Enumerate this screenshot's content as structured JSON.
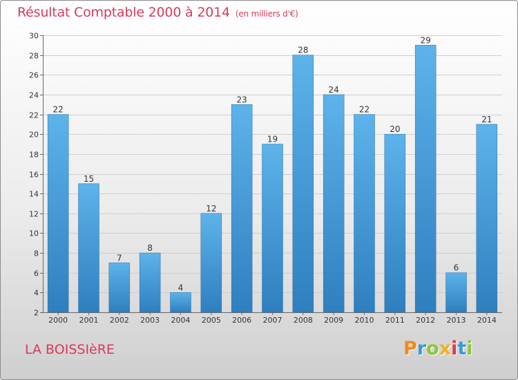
{
  "chart_data": {
    "type": "bar",
    "title": "Résultat Comptable 2000 à 2014",
    "subtitle": "(en milliers d'€)",
    "categories": [
      "2000",
      "2001",
      "2002",
      "2003",
      "2004",
      "2005",
      "2006",
      "2007",
      "2008",
      "2009",
      "2010",
      "2011",
      "2012",
      "2013",
      "2014"
    ],
    "values": [
      22,
      15,
      7,
      8,
      4,
      12,
      23,
      19,
      28,
      24,
      22,
      20,
      29,
      6,
      21
    ],
    "ylim": [
      2,
      30
    ],
    "yticks": [
      2,
      4,
      6,
      8,
      10,
      12,
      14,
      16,
      18,
      20,
      22,
      24,
      26,
      28,
      30
    ],
    "xlabel": "",
    "ylabel": "",
    "grid": true,
    "colors": {
      "bar_light": "#5db3ea",
      "bar_dark": "#2f7fbf",
      "grid": "#cfcfcf"
    }
  },
  "commune": "LA BOISSIèRE",
  "logo": {
    "letters": [
      {
        "ch": "P",
        "color": "#f08a1c"
      },
      {
        "ch": "r",
        "color": "#3a9ad9"
      },
      {
        "ch": "o",
        "color": "#8cc63f"
      },
      {
        "ch": "x",
        "color": "#f0b020"
      },
      {
        "ch": "i",
        "color": "#e2364f"
      },
      {
        "ch": "t",
        "color": "#3a9ad9"
      },
      {
        "ch": "i",
        "color": "#8cc63f"
      }
    ]
  }
}
